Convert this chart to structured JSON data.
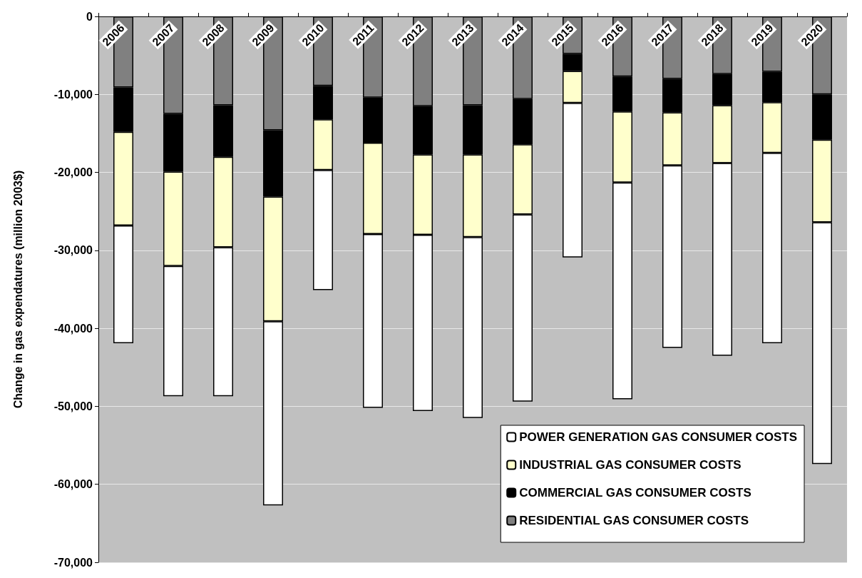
{
  "chart_data": {
    "type": "bar",
    "stacked": true,
    "ylabel": "Change in gas expendatures (million 2003$)",
    "categories": [
      "2006",
      "2007",
      "2008",
      "2009",
      "2010",
      "2011",
      "2012",
      "2013",
      "2014",
      "2015",
      "2016",
      "2017",
      "2018",
      "2019",
      "2020"
    ],
    "series": [
      {
        "name": "RESIDENTIAL GAS CONSUMER COSTS",
        "color": "#808080",
        "values": [
          -9100,
          -12500,
          -11400,
          -14600,
          -8900,
          -10400,
          -11500,
          -11400,
          -10600,
          -4800,
          -7700,
          -8000,
          -7400,
          -7100,
          -10000
        ]
      },
      {
        "name": "COMMERCIAL GAS CONSUMER COSTS",
        "color": "#000000",
        "values": [
          -5700,
          -7400,
          -6600,
          -8500,
          -4300,
          -5800,
          -6200,
          -6300,
          -5800,
          -2200,
          -4500,
          -4300,
          -4000,
          -3900,
          -5800
        ]
      },
      {
        "name": "INDUSTRIAL GAS CONSUMER COSTS",
        "color": "#ffffcc",
        "values": [
          -12000,
          -12100,
          -11600,
          -16000,
          -6500,
          -11700,
          -10300,
          -10600,
          -9000,
          -4100,
          -9100,
          -6800,
          -7400,
          -6500,
          -10600
        ]
      },
      {
        "name": "POWER GENERATION GAS CONSUMER COSTS",
        "color": "#ffffff",
        "values": [
          -15100,
          -16700,
          -19100,
          -23600,
          -15400,
          -22300,
          -22600,
          -23200,
          -24000,
          -19800,
          -27800,
          -23400,
          -24700,
          -24400,
          -31000
        ]
      }
    ],
    "ylim": [
      -70000,
      0
    ],
    "yticks": [
      0,
      {
        "value": -10000,
        "label": "-10,000"
      },
      {
        "value": -20000,
        "label": "-20,000"
      },
      {
        "value": -30000,
        "label": "-30,000"
      },
      {
        "value": -40000,
        "label": "-40,000"
      },
      {
        "value": -50000,
        "label": "-50,000"
      },
      {
        "value": -60000,
        "label": "-60,000"
      },
      {
        "value": -70000,
        "label": "-70,000"
      }
    ],
    "grid": "y",
    "legend": "bottom right"
  }
}
